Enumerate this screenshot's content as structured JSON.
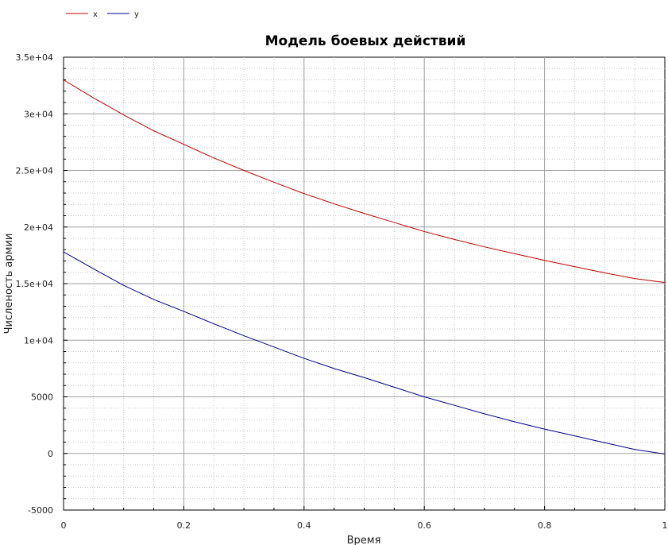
{
  "chart_data": {
    "type": "line",
    "title": "Модель боевых действий",
    "xlabel": "Время",
    "ylabel": "Численость армии",
    "xlim": [
      0,
      1
    ],
    "ylim": [
      -5000,
      35000
    ],
    "grid": true,
    "legend_position": "top-left",
    "x_ticks": [
      0,
      0.2,
      0.4,
      0.6,
      0.8,
      1
    ],
    "x_tick_labels": [
      "0",
      "0.2",
      "0.4",
      "0.6",
      "0.8",
      "1"
    ],
    "y_ticks": [
      -5000,
      0,
      5000,
      10000,
      15000,
      20000,
      25000,
      30000,
      35000
    ],
    "y_tick_labels": [
      "-5000",
      "0",
      "5000",
      "1e+04",
      "1.5e+04",
      "2e+04",
      "2.5e+04",
      "3e+04",
      "3.5e+04"
    ],
    "x": [
      0,
      0.05,
      0.1,
      0.15,
      0.2,
      0.25,
      0.3,
      0.35,
      0.4,
      0.45,
      0.5,
      0.55,
      0.6,
      0.65,
      0.7,
      0.75,
      0.8,
      0.85,
      0.9,
      0.95,
      1
    ],
    "series": [
      {
        "name": "x",
        "color": "#c00000",
        "values": [
          33000,
          31400,
          29900,
          28500,
          27300,
          26100,
          25000,
          23950,
          22950,
          22050,
          21200,
          20400,
          19600,
          18900,
          18250,
          17650,
          17050,
          16500,
          15950,
          15450,
          15100
        ]
      },
      {
        "name": "y",
        "color": "#00008b",
        "values": [
          17800,
          16300,
          14850,
          13600,
          12550,
          11450,
          10400,
          9400,
          8400,
          7500,
          6700,
          5850,
          5000,
          4250,
          3500,
          2800,
          2150,
          1550,
          950,
          350,
          -50
        ]
      }
    ]
  }
}
